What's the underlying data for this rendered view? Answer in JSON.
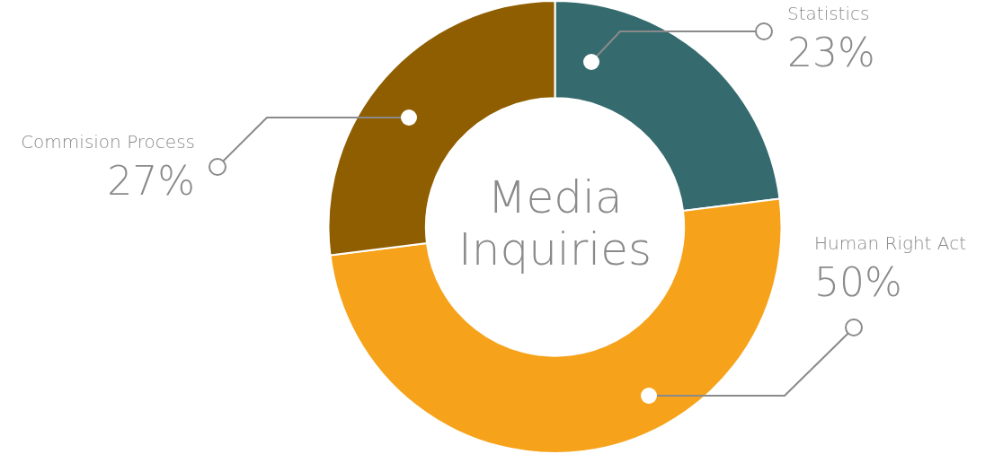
{
  "chart_data": {
    "type": "donut",
    "title": "Media Inquiries",
    "categories": [
      "Statistics",
      "Human Right Act",
      "Commision Process"
    ],
    "values": [
      23,
      50,
      27
    ],
    "colors": [
      "#356b6e",
      "#f6a31b",
      "#8f5e00"
    ],
    "value_labels": [
      "23%",
      "50%",
      "27%"
    ],
    "legend": false
  }
}
